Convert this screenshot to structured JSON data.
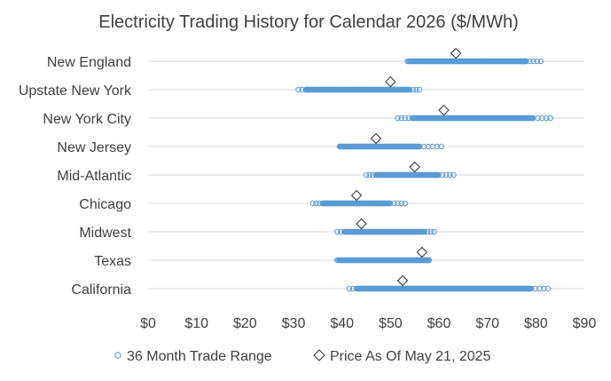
{
  "chart_data": {
    "type": "scatter",
    "title": "Electricity Trading History for Calendar 2026 ($/MWh)",
    "xlabel": "",
    "ylabel": "",
    "xlim": [
      0,
      90
    ],
    "x_ticks": [
      0,
      10,
      20,
      30,
      40,
      50,
      60,
      70,
      80,
      90
    ],
    "x_tick_labels": [
      "$0",
      "$10",
      "$20",
      "$30",
      "$40",
      "$50",
      "$60",
      "$70",
      "$80",
      "$90"
    ],
    "grid": "horizontal",
    "legend_position": "bottom",
    "categories": [
      "New England",
      "Upstate New York",
      "New York City",
      "New Jersey",
      "Mid-Atlantic",
      "Chicago",
      "Midwest",
      "Texas",
      "California"
    ],
    "series": [
      {
        "name": "36 Month Trade Range",
        "marker": "circle",
        "color": "#5B9BD5",
        "values": [
          {
            "category": "New England",
            "min": 53.5,
            "max": 81,
            "dense_from": 54,
            "dense_to": 78
          },
          {
            "category": "Upstate New York",
            "min": 31,
            "max": 56,
            "dense_from": 32.5,
            "dense_to": 54
          },
          {
            "category": "New York City",
            "min": 51.5,
            "max": 83,
            "dense_from": 54.5,
            "dense_to": 79.5
          },
          {
            "category": "New Jersey",
            "min": 39.5,
            "max": 60.5,
            "dense_from": 39.5,
            "dense_to": 56
          },
          {
            "category": "Mid-Atlantic",
            "min": 45,
            "max": 63,
            "dense_from": 47,
            "dense_to": 60
          },
          {
            "category": "Chicago",
            "min": 34,
            "max": 53,
            "dense_from": 36,
            "dense_to": 50
          },
          {
            "category": "Midwest",
            "min": 39,
            "max": 59,
            "dense_from": 40.5,
            "dense_to": 57
          },
          {
            "category": "Texas",
            "min": 39,
            "max": 58,
            "dense_from": 39.5,
            "dense_to": 58
          },
          {
            "category": "California",
            "min": 41.5,
            "max": 82.5,
            "dense_from": 43,
            "dense_to": 79
          }
        ]
      },
      {
        "name": "Price As Of May 21, 2025",
        "marker": "diamond",
        "color": "#333333",
        "values": [
          {
            "category": "New England",
            "x": 63.5
          },
          {
            "category": "Upstate New York",
            "x": 50
          },
          {
            "category": "New York City",
            "x": 61
          },
          {
            "category": "New Jersey",
            "x": 47
          },
          {
            "category": "Mid-Atlantic",
            "x": 55
          },
          {
            "category": "Chicago",
            "x": 43
          },
          {
            "category": "Midwest",
            "x": 44
          },
          {
            "category": "Texas",
            "x": 56.5
          },
          {
            "category": "California",
            "x": 52.5
          }
        ]
      }
    ],
    "colors": {
      "range": "#5B9BD5",
      "price": "#333333",
      "grid": "#D9D9D9",
      "text": "#404040"
    }
  }
}
